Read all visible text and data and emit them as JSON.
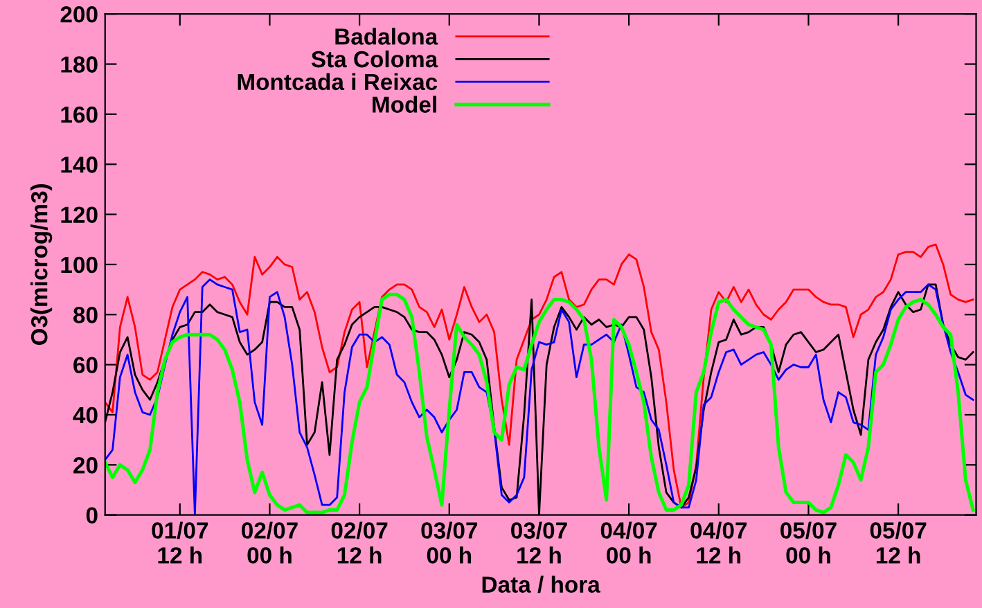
{
  "chart_data": {
    "type": "line",
    "xlabel": "Data / hora",
    "ylabel": "O3(microg/m3)",
    "categories": [
      null,
      null,
      null,
      null,
      null,
      null,
      null,
      null,
      null,
      null,
      "01/07\n12 h",
      null,
      null,
      null,
      null,
      null,
      null,
      null,
      null,
      null,
      null,
      null,
      "02/07\n00 h",
      null,
      null,
      null,
      null,
      null,
      null,
      null,
      null,
      null,
      null,
      null,
      "02/07\n12 h",
      null,
      null,
      null,
      null,
      null,
      null,
      null,
      null,
      null,
      null,
      null,
      "03/07\n00 h",
      null,
      null,
      null,
      null,
      null,
      null,
      null,
      null,
      null,
      null,
      null,
      "03/07\n12 h",
      null,
      null,
      null,
      null,
      null,
      null,
      null,
      null,
      null,
      null,
      null,
      "04/07\n00 h",
      null,
      null,
      null,
      null,
      null,
      null,
      null,
      null,
      null,
      null,
      null,
      "04/07\n12 h",
      null,
      null,
      null,
      null,
      null,
      null,
      null,
      null,
      null,
      null,
      null,
      "05/07\n00 h",
      null,
      null,
      null,
      null,
      null,
      null,
      null,
      null,
      null,
      null,
      null,
      "05/07\n12 h",
      null,
      null,
      null,
      null,
      null,
      null,
      null,
      null,
      null,
      null
    ],
    "series": [
      {
        "name": "Badalona",
        "color": "#ff0000",
        "values": [
          45,
          41,
          75,
          87,
          75,
          56,
          54,
          57,
          70,
          83,
          90,
          92,
          94,
          97,
          96,
          94,
          95,
          92,
          85,
          80,
          103,
          96,
          99,
          103,
          100,
          99,
          86,
          89,
          81,
          67,
          57,
          59,
          73,
          82,
          85,
          59,
          73,
          87,
          90,
          92,
          92,
          90,
          83,
          81,
          75,
          82,
          70,
          80,
          91,
          83,
          77,
          80,
          73,
          46,
          28,
          62,
          70,
          78,
          80,
          86,
          95,
          97,
          86,
          83,
          84,
          90,
          94,
          94,
          92,
          100,
          104,
          102,
          91,
          73,
          66,
          45,
          18,
          3,
          5,
          20,
          55,
          82,
          89,
          85,
          91,
          85,
          90,
          84,
          80,
          78,
          82,
          85,
          90,
          90,
          90,
          87,
          85,
          84,
          84,
          83,
          71,
          80,
          82,
          87,
          89,
          94,
          104,
          105,
          105,
          103,
          107,
          108,
          100,
          88,
          86,
          85,
          86
        ]
      },
      {
        "name": "Sta Coloma",
        "color": "#000000",
        "values": [
          37,
          49,
          65,
          71,
          56,
          50,
          46,
          53,
          62,
          70,
          75,
          76,
          81,
          81,
          84,
          81,
          80,
          79,
          69,
          64,
          66,
          69,
          85,
          85,
          83,
          83,
          74,
          28,
          33,
          53,
          24,
          62,
          68,
          76,
          79,
          81,
          83,
          83,
          82,
          81,
          79,
          74,
          73,
          73,
          70,
          64,
          55,
          62,
          73,
          72,
          69,
          62,
          35,
          11,
          6,
          7,
          40,
          86,
          0,
          60,
          75,
          83,
          79,
          74,
          79,
          76,
          78,
          75,
          76,
          75,
          79,
          79,
          74,
          55,
          27,
          9,
          5,
          3,
          7,
          19,
          42,
          57,
          69,
          70,
          78,
          72,
          73,
          75,
          75,
          68,
          57,
          68,
          72,
          73,
          69,
          65,
          66,
          69,
          72,
          57,
          42,
          32,
          62,
          69,
          74,
          83,
          89,
          84,
          81,
          82,
          92,
          92,
          76,
          68,
          63,
          62,
          65
        ]
      },
      {
        "name": "Montcada i Reixac",
        "color": "#0000ff",
        "values": [
          22,
          26,
          55,
          64,
          49,
          41,
          40,
          47,
          60,
          72,
          81,
          87,
          0,
          91,
          94,
          92,
          91,
          90,
          73,
          74,
          45,
          36,
          87,
          89,
          79,
          60,
          33,
          27,
          16,
          4,
          4,
          7,
          49,
          67,
          72,
          72,
          69,
          71,
          68,
          56,
          53,
          45,
          39,
          42,
          39,
          33,
          38,
          42,
          57,
          57,
          51,
          49,
          34,
          8,
          5,
          8,
          15,
          58,
          69,
          68,
          69,
          82,
          77,
          55,
          68,
          68,
          70,
          72,
          69,
          76,
          64,
          51,
          49,
          38,
          34,
          20,
          5,
          3,
          3,
          14,
          44,
          47,
          57,
          65,
          66,
          60,
          62,
          64,
          65,
          60,
          54,
          58,
          60,
          59,
          59,
          64,
          46,
          37,
          49,
          47,
          37,
          36,
          34,
          64,
          71,
          82,
          86,
          89,
          89,
          89,
          92,
          90,
          76,
          65,
          57,
          48,
          46
        ]
      },
      {
        "name": "Model",
        "color": "#00ff00",
        "values": [
          21,
          15,
          20,
          18,
          13,
          18,
          26,
          49,
          62,
          69,
          71,
          72,
          72,
          72,
          72,
          70,
          66,
          58,
          45,
          22,
          9,
          17,
          8,
          4,
          2,
          3,
          4,
          1,
          1,
          1,
          2,
          2,
          8,
          29,
          45,
          51,
          69,
          86,
          88,
          88,
          86,
          79,
          57,
          31,
          18,
          4,
          42,
          76,
          71,
          68,
          64,
          53,
          33,
          30,
          52,
          59,
          58,
          68,
          77,
          82,
          86,
          86,
          85,
          82,
          78,
          62,
          27,
          6,
          78,
          75,
          68,
          57,
          45,
          23,
          9,
          2,
          2,
          4,
          12,
          49,
          57,
          73,
          85,
          86,
          82,
          79,
          76,
          75,
          74,
          68,
          27,
          9,
          5,
          5,
          5,
          2,
          1,
          3,
          12,
          24,
          21,
          14,
          27,
          57,
          60,
          68,
          78,
          83,
          85,
          86,
          84,
          80,
          75,
          72,
          49,
          14,
          2
        ]
      }
    ],
    "ylim": [
      0,
      200
    ],
    "yticks": [
      0,
      20,
      40,
      60,
      80,
      100,
      120,
      140,
      160,
      180,
      200
    ],
    "grid": false,
    "legend": "top",
    "marker": "none",
    "line_style": "solid"
  }
}
